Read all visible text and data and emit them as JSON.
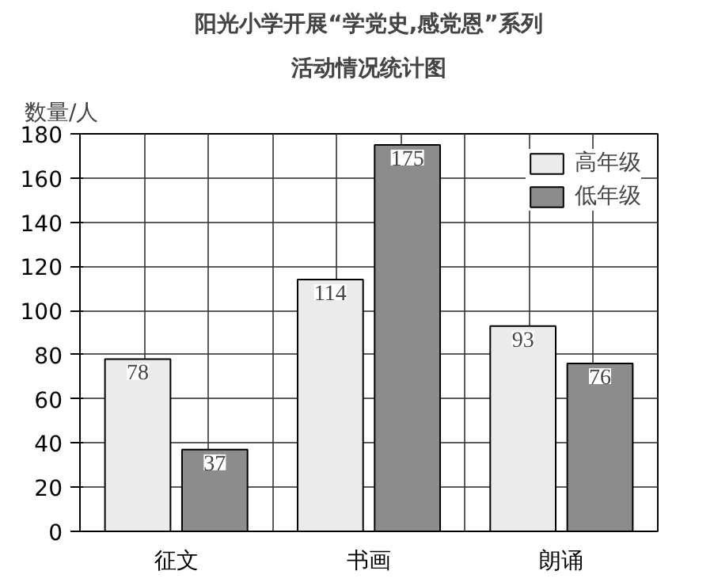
{
  "chart_data": {
    "type": "bar",
    "title": "阳光小学开展“学党史,感党恩”系列",
    "subtitle": "活动情况统计图",
    "ylabel": "数量/人",
    "categories": [
      "征文",
      "书画",
      "朗诵"
    ],
    "series": [
      {
        "name": "高年级",
        "color": "#ebebeb",
        "values": [
          78,
          114,
          93
        ]
      },
      {
        "name": "低年级",
        "color": "#8c8c8c",
        "values": [
          37,
          175,
          76
        ]
      }
    ],
    "ylim": [
      0,
      180
    ],
    "yticks": [
      0,
      20,
      40,
      60,
      80,
      100,
      120,
      140,
      160,
      180
    ],
    "grid": true,
    "legend": "top right",
    "data_labels": true
  }
}
